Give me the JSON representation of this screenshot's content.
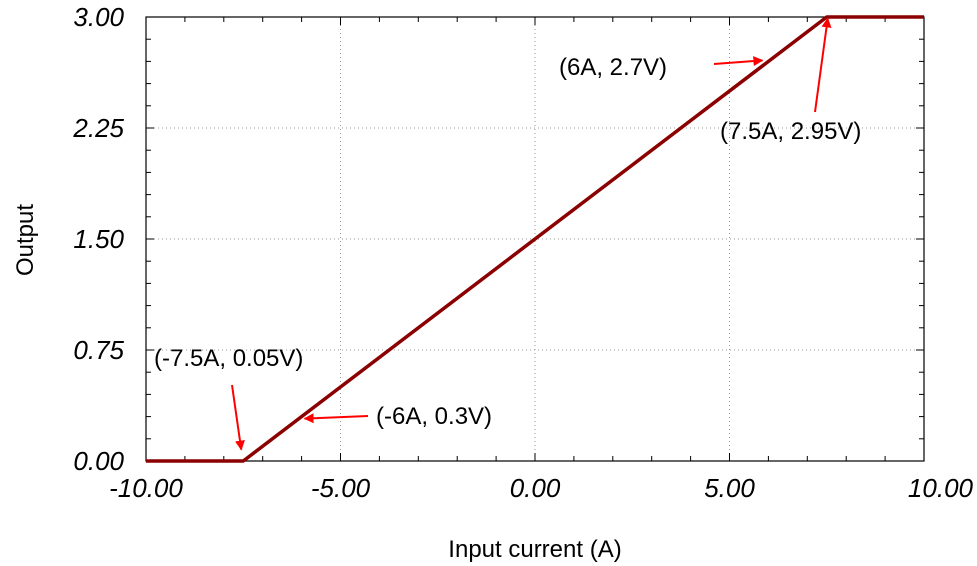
{
  "chart_data": {
    "type": "line",
    "title": "",
    "xlabel": "Input current (A)",
    "ylabel": "Output",
    "xlim": [
      -10,
      10
    ],
    "ylim": [
      0,
      3
    ],
    "xticks": [
      "-10.00",
      "-5.00",
      "0.00",
      "5.00",
      "10.00"
    ],
    "yticks": [
      "0.00",
      "0.75",
      "1.50",
      "2.25",
      "3.00"
    ],
    "grid": true,
    "series": [
      {
        "color": "#8b0000",
        "x": [
          -10,
          -7.5,
          7.5,
          10
        ],
        "y": [
          0,
          0,
          3,
          3
        ]
      }
    ],
    "annotations": [
      {
        "text": "(6A, 2.7V)",
        "point": [
          6,
          2.7
        ]
      },
      {
        "text": "(7.5A, 2.95V)",
        "point": [
          7.5,
          2.95
        ]
      },
      {
        "text": "(-7.5A, 0.05V)",
        "point": [
          -7.5,
          0.05
        ]
      },
      {
        "text": "(-6A, 0.3V)",
        "point": [
          -6,
          0.3
        ]
      }
    ],
    "arrow_color": "#ff0000"
  }
}
